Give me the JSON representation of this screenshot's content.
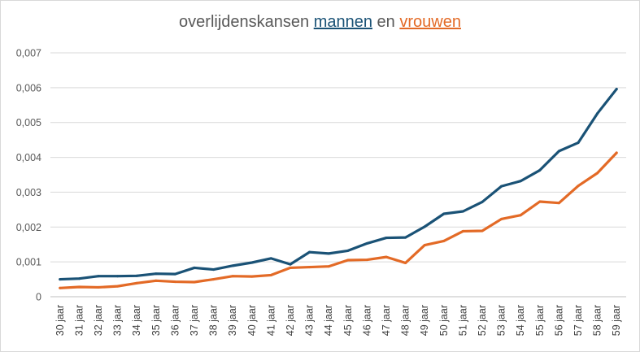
{
  "chart_data": {
    "type": "line",
    "title": {
      "prefix": "overlijdenskansen ",
      "men_word": "mannen",
      "middle": " en ",
      "women_word": "vrouwen"
    },
    "categories": [
      "30 jaar",
      "31 jaar",
      "32 jaar",
      "33 jaar",
      "34 jaar",
      "35 jaar",
      "36 jaar",
      "37 jaar",
      "38 jaar",
      "39 jaar",
      "40 jaar",
      "41 jaar",
      "42 jaar",
      "43 jaar",
      "44 jaar",
      "45 jaar",
      "46 jaar",
      "47 jaar",
      "48 jaar",
      "49 jaar",
      "50 jaar",
      "51 jaar",
      "52 jaar",
      "53 jaar",
      "54 jaar",
      "55 jaar",
      "56 jaar",
      "57 jaar",
      "58 jaar",
      "59 jaar"
    ],
    "y_ticks": [
      "0",
      "0,001",
      "0,002",
      "0,003",
      "0,004",
      "0,005",
      "0,006",
      "0,007"
    ],
    "ylim": [
      0,
      0.007
    ],
    "grid": true,
    "series": [
      {
        "name": "mannen",
        "color": "#1a5276",
        "values": [
          0.0005,
          0.00052,
          0.00059,
          0.00059,
          0.0006,
          0.00066,
          0.00065,
          0.00083,
          0.00078,
          0.00089,
          0.00098,
          0.0011,
          0.00093,
          0.00128,
          0.00124,
          0.00132,
          0.00153,
          0.00169,
          0.0017,
          0.00201,
          0.00238,
          0.00245,
          0.00272,
          0.00317,
          0.00332,
          0.00363,
          0.00418,
          0.00442,
          0.00526,
          0.00596
        ]
      },
      {
        "name": "vrouwen",
        "color": "#e36a26",
        "values": [
          0.00025,
          0.00028,
          0.00027,
          0.0003,
          0.00039,
          0.00046,
          0.00043,
          0.00042,
          0.0005,
          0.00059,
          0.00058,
          0.00062,
          0.00083,
          0.00085,
          0.00087,
          0.00105,
          0.00106,
          0.00114,
          0.00097,
          0.00148,
          0.0016,
          0.00188,
          0.00189,
          0.00223,
          0.00234,
          0.00273,
          0.00269,
          0.00318,
          0.00355,
          0.00413
        ]
      }
    ]
  }
}
